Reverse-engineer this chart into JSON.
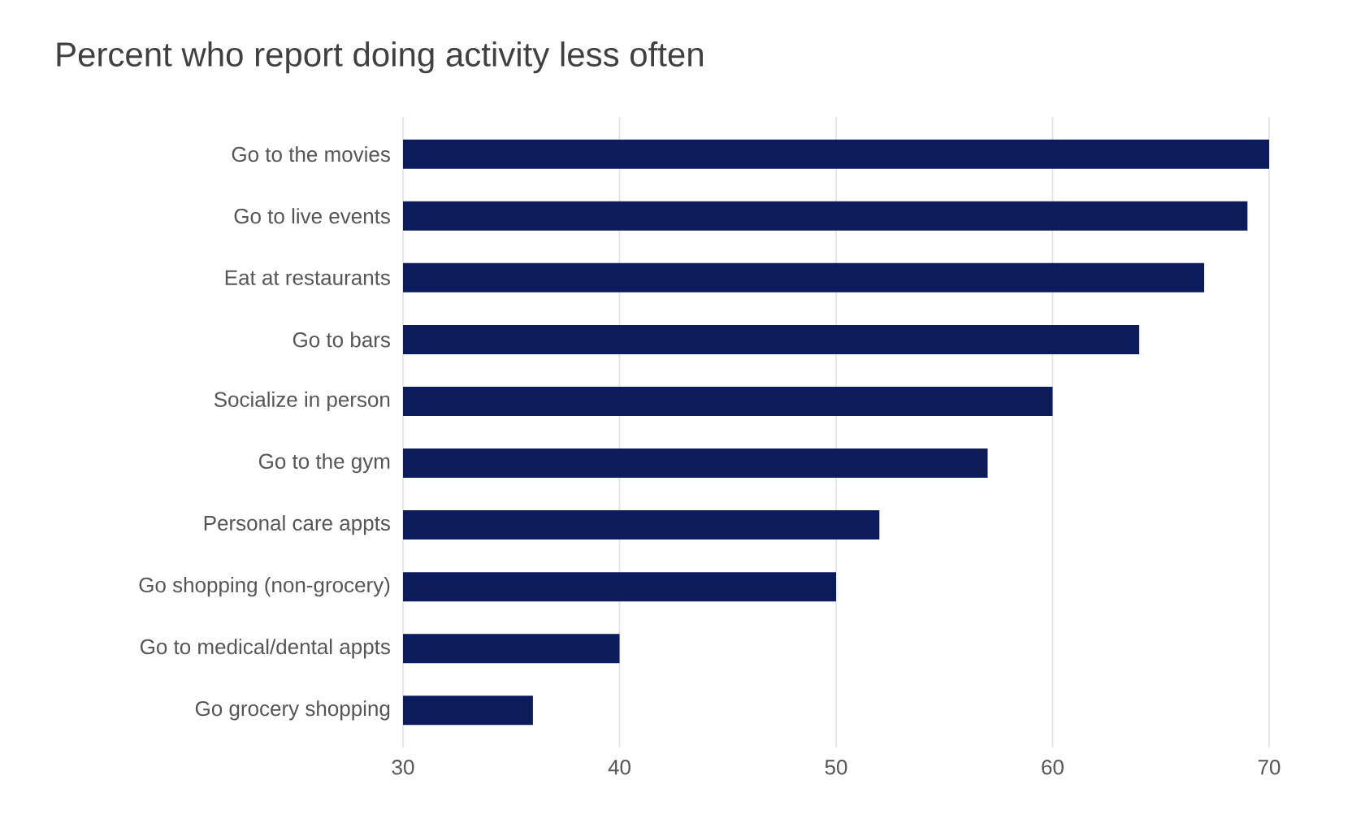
{
  "chart_data": {
    "type": "bar",
    "orientation": "horizontal",
    "title": "Percent who report doing activity less often",
    "categories": [
      "Go to the movies",
      "Go to live events",
      "Eat at restaurants",
      "Go to bars",
      "Socialize in person",
      "Go to the gym",
      "Personal care appts",
      "Go shopping (non-grocery)",
      "Go to medical/dental appts",
      "Go grocery shopping"
    ],
    "values": [
      70,
      69,
      67,
      64,
      60,
      57,
      52,
      50,
      40,
      36
    ],
    "color": "#0c1b5c",
    "xlim": [
      30,
      70
    ],
    "xticks": [
      30,
      40,
      50,
      60,
      70
    ],
    "grid": "x"
  }
}
